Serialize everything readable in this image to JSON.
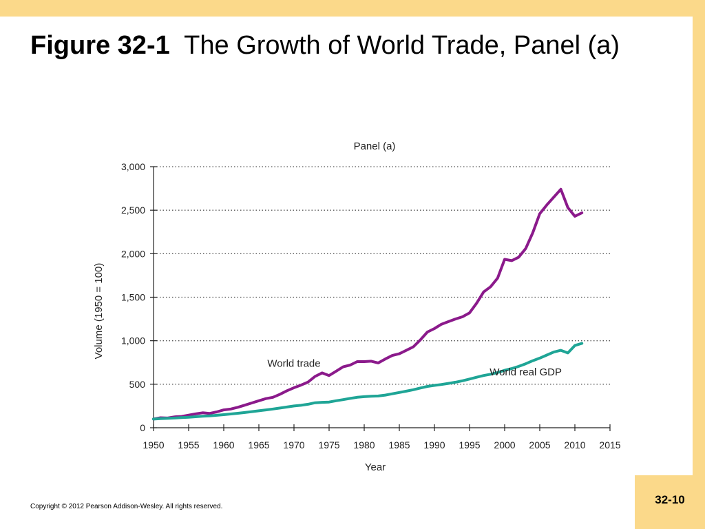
{
  "slide": {
    "title_lead": "Figure 32-1",
    "title_rest": "The Growth of World Trade, Panel (a)",
    "copyright": "Copyright © 2012 Pearson Addison-Wesley. All rights reserved.",
    "page_number": "32-10"
  },
  "colors": {
    "accent_bar": "#FBD98A",
    "world_trade": "#8B1A8B",
    "world_gdp": "#1FA596"
  },
  "chart_data": {
    "type": "line",
    "title": "Panel (a)",
    "xlabel": "Year",
    "ylabel": "Volume (1950 = 100)",
    "xlim": [
      1950,
      2015
    ],
    "ylim": [
      0,
      3000
    ],
    "x_ticks": [
      1950,
      1955,
      1960,
      1965,
      1970,
      1975,
      1980,
      1985,
      1990,
      1995,
      2000,
      2005,
      2010,
      2015
    ],
    "x_tick_labels": [
      "1950",
      "1955",
      "1960",
      "1965",
      "1970",
      "1975",
      "1980",
      "1985",
      "1990",
      "1995",
      "2000",
      "2005",
      "2010",
      "2015"
    ],
    "y_ticks": [
      0,
      500,
      1000,
      1500,
      2000,
      2500,
      3000
    ],
    "y_tick_labels": [
      "0",
      "500",
      "1,000",
      "1,500",
      "2,000",
      "2,500",
      "3,000"
    ],
    "grid": "dotted horizontal",
    "series": [
      {
        "name": "World trade",
        "color": "#8B1A8B",
        "x": [
          1950,
          1951,
          1952,
          1953,
          1954,
          1955,
          1956,
          1957,
          1958,
          1959,
          1960,
          1961,
          1962,
          1963,
          1964,
          1965,
          1966,
          1967,
          1968,
          1969,
          1970,
          1971,
          1972,
          1973,
          1974,
          1975,
          1976,
          1977,
          1978,
          1979,
          1980,
          1981,
          1982,
          1983,
          1984,
          1985,
          1986,
          1987,
          1988,
          1989,
          1990,
          1991,
          1992,
          1993,
          1994,
          1995,
          1996,
          1997,
          1998,
          1999,
          2000,
          2001,
          2002,
          2003,
          2004,
          2005,
          2006,
          2007,
          2008,
          2009,
          2010,
          2011
        ],
        "y": [
          100,
          115,
          112,
          125,
          130,
          145,
          160,
          172,
          165,
          182,
          205,
          215,
          235,
          260,
          285,
          310,
          335,
          350,
          385,
          425,
          460,
          490,
          525,
          590,
          630,
          600,
          650,
          700,
          720,
          760,
          760,
          765,
          745,
          790,
          830,
          850,
          890,
          930,
          1010,
          1100,
          1140,
          1190,
          1220,
          1250,
          1275,
          1320,
          1430,
          1560,
          1620,
          1720,
          1935,
          1920,
          1960,
          2060,
          2240,
          2460,
          2560,
          2650,
          2740,
          2530,
          2430,
          2470
        ]
      },
      {
        "name": "World real GDP",
        "color": "#1FA596",
        "x": [
          1950,
          1951,
          1952,
          1953,
          1954,
          1955,
          1956,
          1957,
          1958,
          1959,
          1960,
          1961,
          1962,
          1963,
          1964,
          1965,
          1966,
          1967,
          1968,
          1969,
          1970,
          1971,
          1972,
          1973,
          1974,
          1975,
          1976,
          1977,
          1978,
          1979,
          1980,
          1981,
          1982,
          1983,
          1984,
          1985,
          1986,
          1987,
          1988,
          1989,
          1990,
          1991,
          1992,
          1993,
          1994,
          1995,
          1996,
          1997,
          1998,
          1999,
          2000,
          2001,
          2002,
          2003,
          2004,
          2005,
          2006,
          2007,
          2008,
          2009,
          2010,
          2011
        ],
        "y": [
          100,
          105,
          108,
          112,
          116,
          121,
          127,
          133,
          137,
          143,
          150,
          158,
          166,
          175,
          185,
          195,
          205,
          215,
          226,
          238,
          250,
          258,
          270,
          287,
          292,
          295,
          310,
          323,
          337,
          350,
          357,
          362,
          365,
          375,
          390,
          405,
          420,
          437,
          457,
          475,
          487,
          497,
          510,
          523,
          540,
          560,
          580,
          600,
          615,
          635,
          660,
          680,
          705,
          735,
          770,
          800,
          835,
          870,
          890,
          860,
          945,
          970
        ]
      }
    ],
    "annotations": [
      {
        "text": "World trade",
        "x": 1970,
        "y": 700
      },
      {
        "text": "World real GDP",
        "x": 2003,
        "y": 600
      }
    ]
  }
}
